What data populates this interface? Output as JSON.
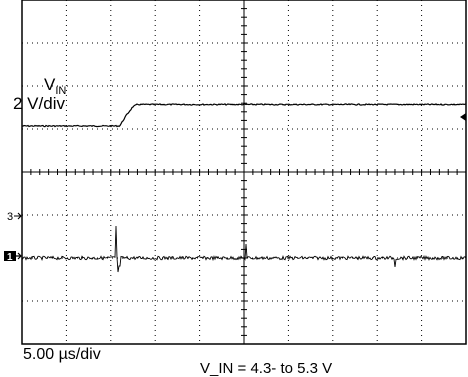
{
  "scope": {
    "time_scale": "5.00 µs/div",
    "footer_caption": "V_IN = 4.3- to 5.3 V",
    "channel_label_symbol": "V",
    "channel_label_subscript": "IN",
    "channel_scale": "2 V/div",
    "marker_3": "3",
    "marker_1": "1"
  },
  "chart_data": {
    "type": "line",
    "title": "",
    "xlabel": "5.00 µs/div",
    "ylabel": "",
    "grid": true,
    "divisions": {
      "horizontal": 10,
      "vertical": 8
    },
    "series": [
      {
        "name": "V_IN",
        "scale": "2 V/div",
        "x_divisions": [
          0,
          2.2,
          2.35,
          2.5,
          2.6,
          10
        ],
        "y_volts": [
          4.3,
          4.3,
          4.8,
          5.2,
          5.3,
          5.3
        ]
      }
    ]
  }
}
